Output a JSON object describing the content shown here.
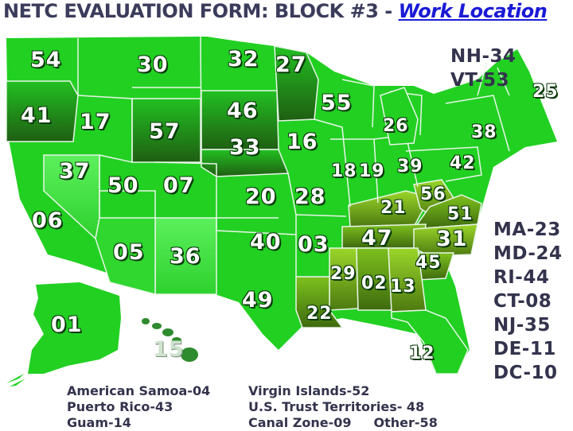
{
  "header": {
    "title": "NETC EVALUATION FORM:  BLOCK #3 - ",
    "link": "Work Location"
  },
  "states": {
    "wa": "54",
    "mt": "30",
    "nd": "32",
    "mn": "27",
    "or": "41",
    "id": "17",
    "wy": "57",
    "sd": "46",
    "wi": "55",
    "mi": "26",
    "nv": "37",
    "ut": "50",
    "co": "07",
    "ne": "33",
    "ia": "16",
    "il": "18",
    "in": "19",
    "oh": "39",
    "pa": "42",
    "ny": "38",
    "me": "25",
    "ca": "06",
    "ks": "20",
    "mo": "28",
    "ky": "21",
    "wv": "56",
    "va": "51",
    "az": "05",
    "nm": "36",
    "ok": "40",
    "ar": "03",
    "tn": "47",
    "nc": "31",
    "sc": "45",
    "ms": "29",
    "al": "02",
    "ga": "13",
    "tx": "49",
    "la": "22",
    "fl": "12",
    "ak": "01",
    "hi": "15"
  },
  "side_labels": {
    "nh": "NH-34",
    "vt": "VT-53",
    "ma": "MA-23",
    "md": "MD-24",
    "ri": "RI-44",
    "ct": "CT-08",
    "nj": "NJ-35",
    "de": "DE-11",
    "dc": "DC-10"
  },
  "territories": {
    "col1": [
      "American Samoa-04",
      "Puerto Rico-43",
      "Guam-14"
    ],
    "col2": [
      "Virgin Islands-52",
      "U.S. Trust Territories- 48"
    ],
    "canal": "Canal Zone-09",
    "other": "Other-58"
  }
}
